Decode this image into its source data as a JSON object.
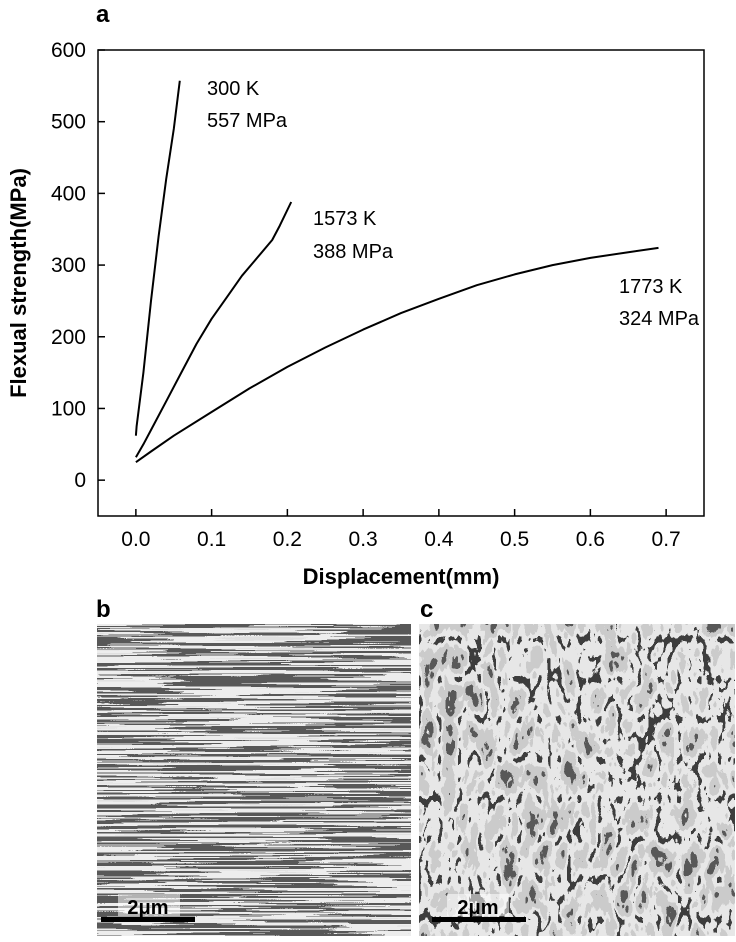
{
  "panels": {
    "a": "a",
    "b": "b",
    "c": "c"
  },
  "chart_data": {
    "type": "line",
    "xlabel": "Displacement(mm)",
    "ylabel": "Flexual strength(MPa)",
    "xlim": [
      -0.05,
      0.75
    ],
    "ylim": [
      -50,
      600
    ],
    "xticks": [
      "0.0",
      "0.1",
      "0.2",
      "0.3",
      "0.4",
      "0.5",
      "0.6",
      "0.7"
    ],
    "yticks": [
      "0",
      "100",
      "200",
      "300",
      "400",
      "500",
      "600"
    ],
    "grid": false,
    "series": [
      {
        "id": "300K",
        "annotation": [
          "300 K",
          "557 MPa"
        ],
        "x": [
          0.0,
          0.001,
          0.01,
          0.02,
          0.03,
          0.04,
          0.05,
          0.058
        ],
        "y": [
          62,
          75,
          150,
          250,
          340,
          420,
          490,
          557
        ]
      },
      {
        "id": "1573K",
        "annotation": [
          "1573 K",
          "388 MPa"
        ],
        "x": [
          0.0,
          0.01,
          0.02,
          0.04,
          0.06,
          0.08,
          0.1,
          0.12,
          0.14,
          0.16,
          0.18,
          0.19,
          0.205
        ],
        "y": [
          32,
          50,
          70,
          110,
          150,
          190,
          225,
          255,
          285,
          310,
          335,
          355,
          388
        ]
      },
      {
        "id": "1773K",
        "annotation": [
          "1773 K",
          "324 MPa"
        ],
        "x": [
          0.0,
          0.02,
          0.05,
          0.1,
          0.15,
          0.2,
          0.25,
          0.3,
          0.35,
          0.4,
          0.45,
          0.5,
          0.55,
          0.6,
          0.65,
          0.69
        ],
        "y": [
          25,
          40,
          62,
          95,
          128,
          158,
          185,
          210,
          233,
          253,
          272,
          287,
          300,
          310,
          318,
          324
        ]
      }
    ]
  },
  "micrographs": {
    "b": {
      "scale_bar": "2μm"
    },
    "c": {
      "scale_bar": "2μm"
    }
  }
}
